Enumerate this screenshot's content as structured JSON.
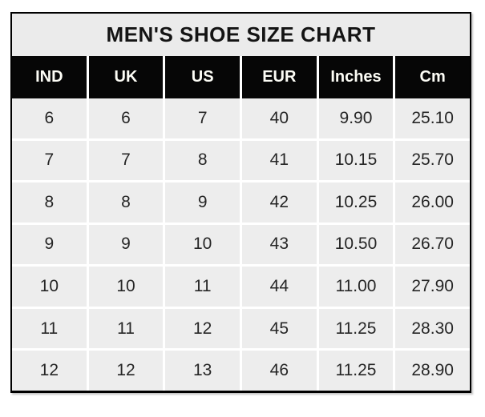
{
  "title": "MEN'S SHOE SIZE CHART",
  "colors": {
    "canvas_background": "#ffffff",
    "border": "#000000",
    "title_background": "#ebebeb",
    "header_background": "#060606",
    "header_text": "#ffffff",
    "cell_background": "#ededed",
    "cell_text": "#262626",
    "gridline": "#ffffff"
  },
  "table": {
    "headers": [
      "IND",
      "UK",
      "US",
      "EUR",
      "Inches",
      "Cm"
    ],
    "rows": [
      [
        "6",
        "6",
        "7",
        "40",
        "9.90",
        "25.10"
      ],
      [
        "7",
        "7",
        "8",
        "41",
        "10.15",
        "25.70"
      ],
      [
        "8",
        "8",
        "9",
        "42",
        "10.25",
        "26.00"
      ],
      [
        "9",
        "9",
        "10",
        "43",
        "10.50",
        "26.70"
      ],
      [
        "10",
        "10",
        "11",
        "44",
        "11.00",
        "27.90"
      ],
      [
        "11",
        "11",
        "12",
        "45",
        "11.25",
        "28.30"
      ],
      [
        "12",
        "12",
        "13",
        "46",
        "11.25",
        "28.90"
      ]
    ]
  },
  "chart_data": {
    "type": "table",
    "title": "MEN'S SHOE SIZE CHART",
    "columns": [
      "IND",
      "UK",
      "US",
      "EUR",
      "Inches",
      "Cm"
    ],
    "rows": [
      [
        6,
        6,
        7,
        40,
        9.9,
        25.1
      ],
      [
        7,
        7,
        8,
        41,
        10.15,
        25.7
      ],
      [
        8,
        8,
        9,
        42,
        10.25,
        26.0
      ],
      [
        9,
        9,
        10,
        43,
        10.5,
        26.7
      ],
      [
        10,
        10,
        11,
        44,
        11.0,
        27.9
      ],
      [
        11,
        11,
        12,
        45,
        11.25,
        28.3
      ],
      [
        12,
        12,
        13,
        46,
        11.25,
        28.9
      ]
    ]
  }
}
